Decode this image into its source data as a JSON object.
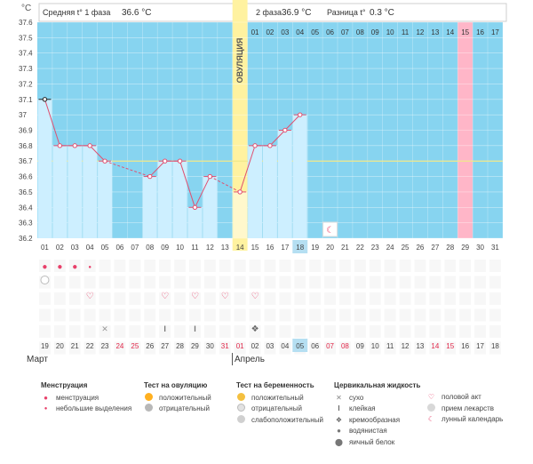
{
  "header": {
    "unit": "°C",
    "avg_phase1_label": "Средняя t° 1 фаза",
    "avg_phase1_value": "36.6 °C",
    "phase2_label": "2 фаза",
    "phase2_value": "36.9 °C",
    "diff_label": "Разница t°",
    "diff_value": "0.3 °C"
  },
  "ovulation_label": "ОВУЛЯЦИЯ",
  "months": {
    "first": "Март",
    "second": "Апрель"
  },
  "colors": {
    "sky": "#87d4f0",
    "bar": "#cdefff",
    "line": "#e05070",
    "ovulation": "#fff2a0",
    "pink": "#ffb6c8",
    "coverline": "#f1e88a"
  },
  "chart_data": {
    "type": "line",
    "ylim": [
      36.2,
      37.6
    ],
    "yticks": [
      "36.2",
      "36.3",
      "36.4",
      "36.5",
      "36.6",
      "36.7",
      "36.8",
      "36.9",
      "37",
      "37.1",
      "37.2",
      "37.3",
      "37.4",
      "37.5",
      "37.6"
    ],
    "coverline": 36.7,
    "days": [
      "01",
      "02",
      "03",
      "04",
      "05",
      "06",
      "07",
      "08",
      "09",
      "10",
      "11",
      "12",
      "13",
      "14",
      "15",
      "16",
      "17",
      "18",
      "19",
      "20",
      "21",
      "22",
      "23",
      "24",
      "25",
      "26",
      "27",
      "28",
      "29",
      "30",
      "31"
    ],
    "highlight_day": "18",
    "dates": [
      "19",
      "20",
      "21",
      "22",
      "23",
      "24",
      "25",
      "26",
      "27",
      "28",
      "29",
      "30",
      "31",
      "01",
      "02",
      "03",
      "04",
      "05",
      "06",
      "07",
      "08",
      "09",
      "10",
      "11",
      "12",
      "13",
      "14",
      "15",
      "16",
      "17",
      "18"
    ],
    "weekend_dates": [
      5,
      6,
      12,
      13,
      19,
      20,
      26,
      27
    ],
    "highlight_date": "05",
    "temperatures": [
      37.1,
      36.8,
      36.8,
      36.8,
      36.7,
      null,
      null,
      36.6,
      36.7,
      36.7,
      36.4,
      36.6,
      null,
      36.5,
      36.8,
      36.8,
      36.9,
      37.0
    ],
    "ovulation_day": "14",
    "phase2_days": [
      "01",
      "02",
      "03",
      "04",
      "05",
      "06",
      "07",
      "08",
      "09",
      "10",
      "11",
      "12",
      "13",
      "14",
      "15",
      "16",
      "17"
    ],
    "pink_phase2_day": "15",
    "markers": {
      "menstruation": [
        1,
        2,
        3
      ],
      "spotting": [
        4
      ],
      "intercourse": [
        4,
        9,
        11,
        13,
        15
      ],
      "fluid_dry": [
        5
      ],
      "fluid_sticky": [
        9,
        11
      ],
      "fluid_creamy": [
        15
      ],
      "lunar": [
        20
      ],
      "ovulation_negative": [
        1
      ]
    }
  },
  "legend": {
    "menstruation": {
      "title": "Менструация",
      "items": [
        "менструация",
        "небольшие выделения"
      ]
    },
    "ovulation_test": {
      "title": "Тест на овуляцию",
      "items": [
        "положительный",
        "отрицательный"
      ]
    },
    "pregnancy_test": {
      "title": "Тест на беременность",
      "items": [
        "положительный",
        "отрицательный",
        "слабоположительный"
      ]
    },
    "cervical": {
      "title": "Цервикальная жидкость",
      "items": [
        "сухо",
        "клейкая",
        "кремообразная",
        "водянистая",
        "яичный белок"
      ]
    },
    "other": {
      "items": [
        "половой акт",
        "прием лекарств",
        "лунный календарь"
      ]
    }
  }
}
